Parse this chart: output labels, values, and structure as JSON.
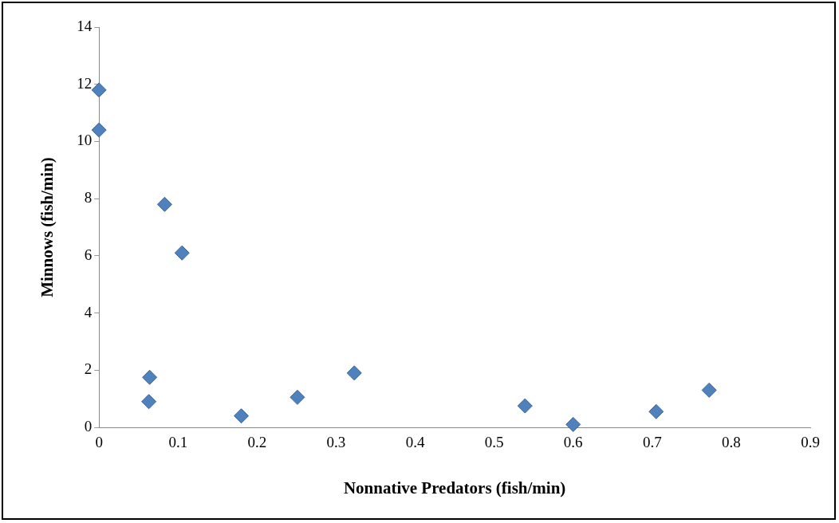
{
  "chart_data": {
    "type": "scatter",
    "xlabel": "Nonnative Predators (fish/min)",
    "ylabel": "Minnows (fish/min)",
    "x": [
      0,
      0,
      0.083,
      0.105,
      0.064,
      0.063,
      0.18,
      0.251,
      0.323,
      0.539,
      0.6,
      0.705,
      0.772
    ],
    "series": [
      {
        "color": "#4f81bd",
        "values": [
          11.8,
          10.4,
          7.8,
          6.1,
          1.75,
          0.9,
          0.4,
          1.05,
          1.9,
          0.75,
          0.1,
          0.55,
          1.3
        ]
      }
    ],
    "xlim": [
      0,
      0.9
    ],
    "xticks": [
      0,
      0.1,
      0.2,
      0.3,
      0.4,
      0.5,
      0.6,
      0.7,
      0.8,
      0.9
    ],
    "ylim": [
      0,
      14
    ],
    "yticks": [
      0,
      2,
      4,
      6,
      8,
      10,
      12,
      14
    ],
    "grid": false,
    "legend": false,
    "marker": "diamond"
  }
}
